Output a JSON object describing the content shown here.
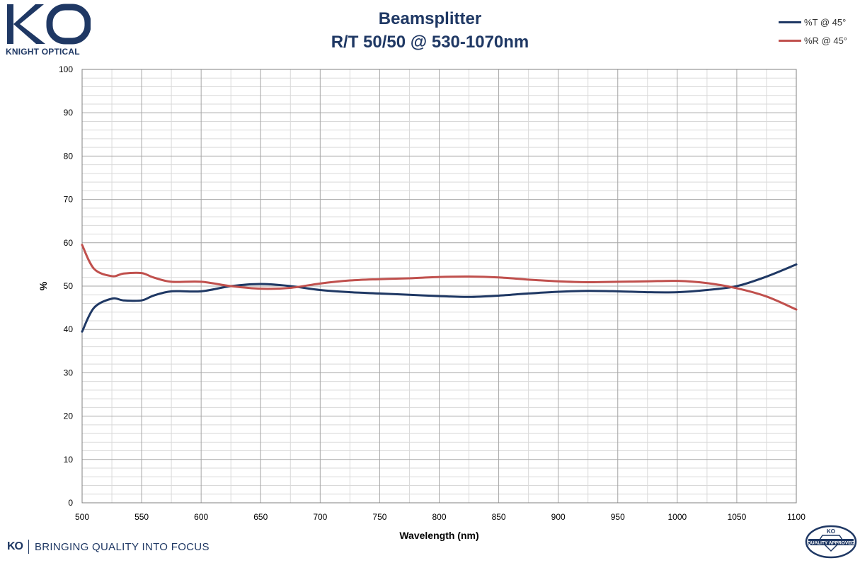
{
  "brand": {
    "logo_text": "KO",
    "company_name": "KNIGHT OPTICAL",
    "footer_logo": "KO",
    "footer_tagline": "BRINGING QUALITY INTO FOCUS",
    "badge_top": "KO",
    "badge_text": "QUALITY APPROVED",
    "brand_color": "#1f3864"
  },
  "chart_data": {
    "type": "line",
    "title": [
      "Beamsplitter",
      "R/T 50/50 @ 530-1070nm"
    ],
    "xlabel": "Wavelength (nm)",
    "ylabel": "%",
    "xlim": [
      500,
      1100
    ],
    "ylim": [
      0,
      100
    ],
    "x_ticks": [
      500,
      550,
      600,
      650,
      700,
      750,
      800,
      850,
      900,
      950,
      1000,
      1050,
      1100
    ],
    "y_ticks": [
      0,
      10,
      20,
      30,
      40,
      50,
      60,
      70,
      80,
      90,
      100
    ],
    "grid": true,
    "legend_position": "top-right",
    "series": [
      {
        "name": "%T @ 45°",
        "color": "#1f3864",
        "x": [
          500,
          510,
          525,
          535,
          550,
          560,
          575,
          600,
          625,
          650,
          675,
          700,
          725,
          750,
          775,
          800,
          825,
          850,
          875,
          900,
          925,
          950,
          975,
          1000,
          1025,
          1050,
          1075,
          1100
        ],
        "y": [
          39.5,
          45.0,
          47.1,
          46.7,
          46.7,
          47.8,
          48.8,
          48.8,
          50.0,
          50.5,
          50.0,
          49.1,
          48.6,
          48.3,
          48.0,
          47.7,
          47.5,
          47.8,
          48.3,
          48.7,
          48.9,
          48.8,
          48.6,
          48.6,
          49.1,
          50.0,
          52.2,
          55.0
        ]
      },
      {
        "name": "%R @ 45°",
        "color": "#c0504d",
        "x": [
          500,
          510,
          525,
          535,
          550,
          560,
          575,
          600,
          625,
          650,
          675,
          700,
          725,
          750,
          775,
          800,
          825,
          850,
          875,
          900,
          925,
          950,
          975,
          1000,
          1025,
          1050,
          1075,
          1100
        ],
        "y": [
          59.5,
          54.0,
          52.3,
          52.9,
          53.0,
          52.0,
          51.0,
          51.0,
          50.0,
          49.4,
          49.6,
          50.6,
          51.3,
          51.6,
          51.8,
          52.1,
          52.2,
          52.0,
          51.5,
          51.1,
          50.9,
          51.0,
          51.1,
          51.2,
          50.7,
          49.5,
          47.6,
          44.6
        ]
      }
    ]
  }
}
